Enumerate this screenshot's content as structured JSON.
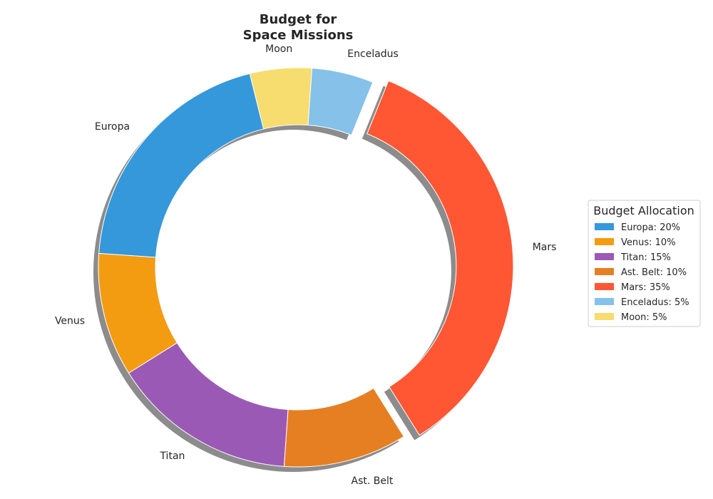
{
  "chart_data": {
    "type": "pie",
    "style": "donut",
    "title_lines": [
      "Budget for",
      "Space Missions"
    ],
    "categories": [
      "Europa",
      "Venus",
      "Titan",
      "Ast. Belt",
      "Mars",
      "Enceladus",
      "Moon"
    ],
    "values": [
      20,
      10,
      15,
      10,
      35,
      5,
      5
    ],
    "colors": [
      "#3498db",
      "#f39c12",
      "#9b59b6",
      "#e67e22",
      "#ff5733",
      "#85c1e9",
      "#f7dc6f"
    ],
    "exploded": [
      "Mars"
    ],
    "shadow": true,
    "visible_percent_label": "0%",
    "legend": {
      "title": "Budget Allocation",
      "placement": "right",
      "entries": [
        "Europa: 20%",
        "Venus: 10%",
        "Titan: 15%",
        "Ast. Belt: 10%",
        "Mars: 35%",
        "Enceladus: 5%",
        "Moon: 5%"
      ]
    }
  }
}
